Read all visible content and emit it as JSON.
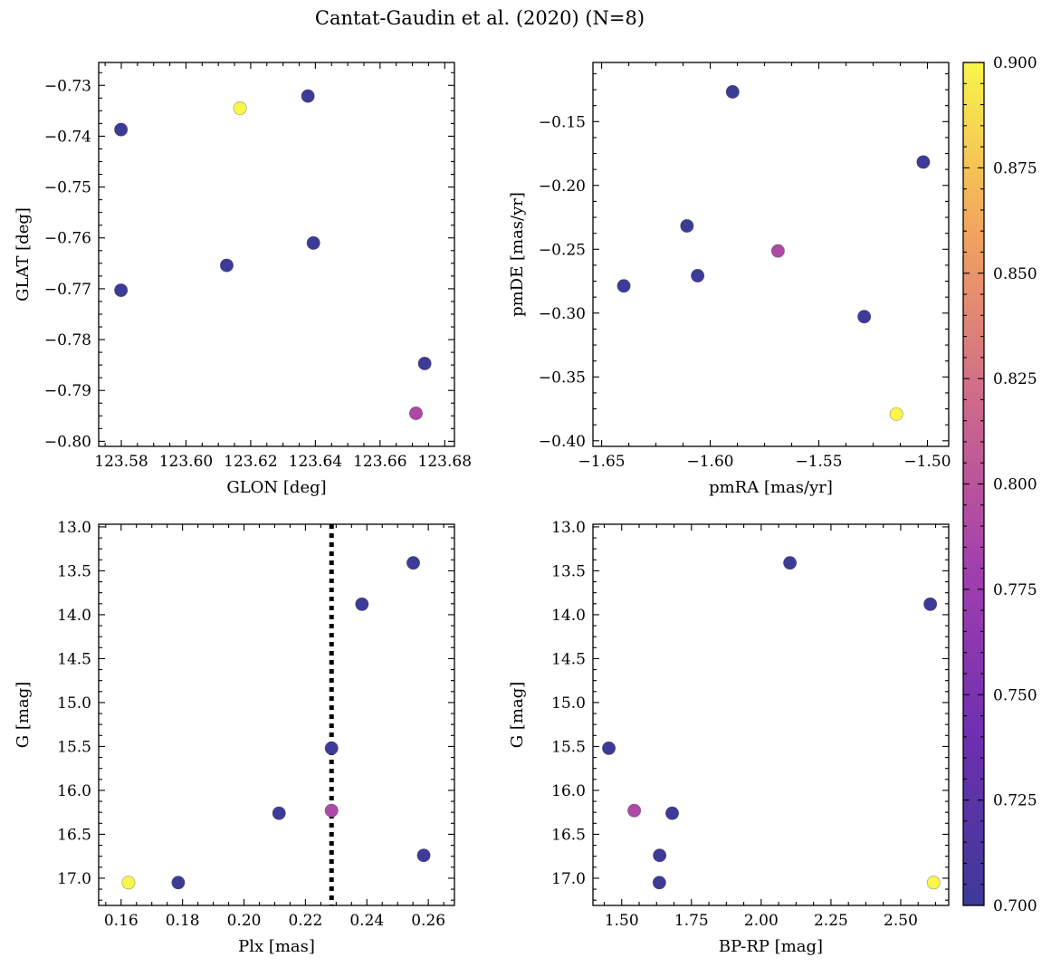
{
  "figure": {
    "title": "Cantat-Gaudin et al. (2020) (N=8)"
  },
  "colormap": {
    "name": "plasma",
    "stops": [
      "#3d3a98",
      "#6e2fb0",
      "#a23fae",
      "#cf6a8a",
      "#f2a45e",
      "#f8f64a"
    ],
    "range": [
      0.7,
      0.9
    ],
    "ticks": [
      "0.700",
      "0.725",
      "0.750",
      "0.775",
      "0.800",
      "0.825",
      "0.850",
      "0.875",
      "0.900"
    ]
  },
  "chart_data": [
    {
      "type": "scatter",
      "xlabel": "GLON [deg]",
      "ylabel": "GLAT [deg]",
      "xlim": [
        123.573,
        123.683
      ],
      "ylim": [
        -0.801,
        -0.7255
      ],
      "xticks": [
        123.58,
        123.6,
        123.62,
        123.64,
        123.66,
        123.68
      ],
      "xtick_labels": [
        "123.58",
        "123.60",
        "123.62",
        "123.64",
        "123.66",
        "123.68"
      ],
      "yticks": [
        -0.73,
        -0.74,
        -0.75,
        -0.76,
        -0.77,
        -0.78,
        -0.79,
        -0.8
      ],
      "ytick_labels": [
        "−0.73",
        "−0.74",
        "−0.75",
        "−0.76",
        "−0.77",
        "−0.78",
        "−0.79",
        "−0.80"
      ],
      "y_inverted": false,
      "points": [
        {
          "x": 123.5799,
          "y": -0.7387,
          "c": 0.7
        },
        {
          "x": 123.5799,
          "y": -0.7703,
          "c": 0.7
        },
        {
          "x": 123.6126,
          "y": -0.7654,
          "c": 0.7
        },
        {
          "x": 123.6377,
          "y": -0.7321,
          "c": 0.7
        },
        {
          "x": 123.6394,
          "y": -0.761,
          "c": 0.7
        },
        {
          "x": 123.6738,
          "y": -0.7847,
          "c": 0.7
        },
        {
          "x": 123.6711,
          "y": -0.7945,
          "c": 0.79
        },
        {
          "x": 123.6167,
          "y": -0.7345,
          "c": 0.9
        }
      ]
    },
    {
      "type": "scatter",
      "xlabel": "pmRA [mas/yr]",
      "ylabel": "pmDE [mas/yr]",
      "xlim": [
        -1.654,
        -1.4902
      ],
      "ylim": [
        -0.4044,
        -0.1037
      ],
      "xticks": [
        -1.65,
        -1.6,
        -1.55,
        -1.5
      ],
      "xtick_labels": [
        "−1.65",
        "−1.60",
        "−1.55",
        "−1.50"
      ],
      "yticks": [
        -0.15,
        -0.2,
        -0.25,
        -0.3,
        -0.35,
        -0.4
      ],
      "ytick_labels": [
        "−0.15",
        "−0.20",
        "−0.25",
        "−0.30",
        "−0.35",
        "−0.40"
      ],
      "y_inverted": false,
      "points": [
        {
          "x": -1.5897,
          "y": -0.1267,
          "c": 0.7
        },
        {
          "x": -1.5019,
          "y": -0.1817,
          "c": 0.7
        },
        {
          "x": -1.6107,
          "y": -0.2317,
          "c": 0.7
        },
        {
          "x": -1.6398,
          "y": -0.2787,
          "c": 0.7
        },
        {
          "x": -1.6058,
          "y": -0.2707,
          "c": 0.7
        },
        {
          "x": -1.5291,
          "y": -0.3028,
          "c": 0.7
        },
        {
          "x": -1.5688,
          "y": -0.2513,
          "c": 0.79
        },
        {
          "x": -1.5143,
          "y": -0.3791,
          "c": 0.9
        }
      ]
    },
    {
      "type": "scatter",
      "xlabel": "Plx [mas]",
      "ylabel": "G [mag]",
      "xlim": [
        0.1527,
        0.2685
      ],
      "ylim": [
        17.31,
        12.97
      ],
      "xticks": [
        0.16,
        0.18,
        0.2,
        0.22,
        0.24,
        0.26
      ],
      "xtick_labels": [
        "0.16",
        "0.18",
        "0.20",
        "0.22",
        "0.24",
        "0.26"
      ],
      "yticks": [
        13.0,
        13.5,
        14.0,
        14.5,
        15.0,
        15.5,
        16.0,
        16.5,
        17.0
      ],
      "ytick_labels": [
        "13.0",
        "13.5",
        "14.0",
        "14.5",
        "15.0",
        "15.5",
        "16.0",
        "16.5",
        "17.0"
      ],
      "y_inverted": true,
      "vline": {
        "x": 0.2285,
        "style": "dotted"
      },
      "points": [
        {
          "x": 0.2551,
          "y": 13.41,
          "c": 0.7
        },
        {
          "x": 0.2384,
          "y": 13.88,
          "c": 0.7
        },
        {
          "x": 0.2285,
          "y": 15.52,
          "c": 0.7
        },
        {
          "x": 0.2114,
          "y": 16.26,
          "c": 0.7
        },
        {
          "x": 0.2585,
          "y": 16.74,
          "c": 0.7
        },
        {
          "x": 0.1786,
          "y": 17.05,
          "c": 0.7
        },
        {
          "x": 0.2285,
          "y": 16.23,
          "c": 0.79
        },
        {
          "x": 0.1624,
          "y": 17.05,
          "c": 0.9
        }
      ]
    },
    {
      "type": "scatter",
      "xlabel": "BP-RP [mag]",
      "ylabel": "G [mag]",
      "xlim": [
        1.397,
        2.672
      ],
      "ylim": [
        17.31,
        12.97
      ],
      "xticks": [
        1.5,
        1.75,
        2.0,
        2.25,
        2.5
      ],
      "xtick_labels": [
        "1.50",
        "1.75",
        "2.00",
        "2.25",
        "2.50"
      ],
      "yticks": [
        13.0,
        13.5,
        14.0,
        14.5,
        15.0,
        15.5,
        16.0,
        16.5,
        17.0
      ],
      "ytick_labels": [
        "13.0",
        "13.5",
        "14.0",
        "14.5",
        "15.0",
        "15.5",
        "16.0",
        "16.5",
        "17.0"
      ],
      "y_inverted": true,
      "points": [
        {
          "x": 2.103,
          "y": 13.41,
          "c": 0.7
        },
        {
          "x": 2.606,
          "y": 13.88,
          "c": 0.7
        },
        {
          "x": 1.454,
          "y": 15.52,
          "c": 0.7
        },
        {
          "x": 1.681,
          "y": 16.26,
          "c": 0.7
        },
        {
          "x": 1.636,
          "y": 16.74,
          "c": 0.7
        },
        {
          "x": 1.635,
          "y": 17.05,
          "c": 0.7
        },
        {
          "x": 1.545,
          "y": 16.23,
          "c": 0.79
        },
        {
          "x": 2.618,
          "y": 17.05,
          "c": 0.9
        }
      ]
    }
  ]
}
